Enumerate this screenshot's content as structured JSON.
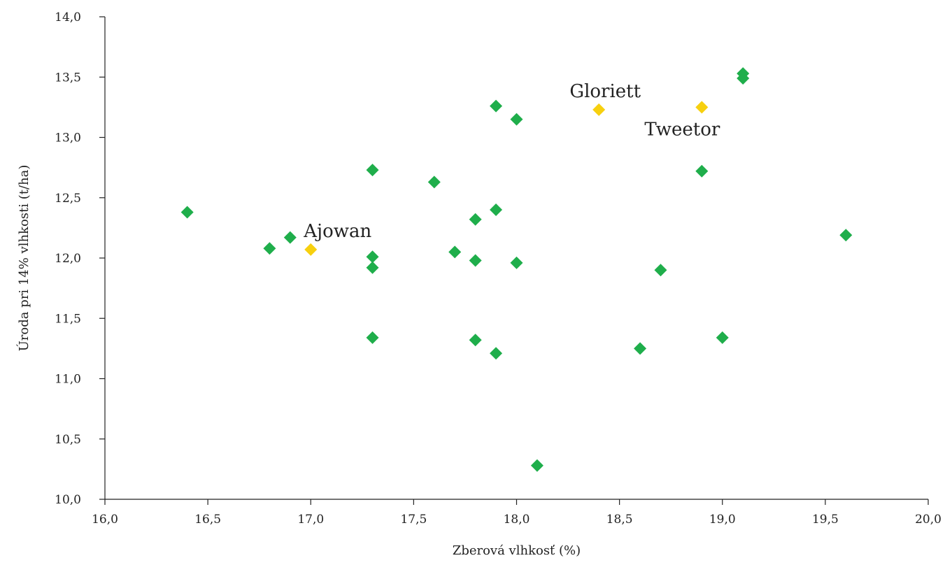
{
  "chart_data": {
    "type": "scatter",
    "title": "",
    "xlabel": "Zberová vlhkosť (%)",
    "ylabel": "Úroda pri 14% vlhkosti (t/ha)",
    "xlim": [
      16.0,
      20.0
    ],
    "ylim": [
      10.0,
      14.0
    ],
    "x_ticks": [
      16.0,
      16.5,
      17.0,
      17.5,
      18.0,
      18.5,
      19.0,
      19.5,
      20.0
    ],
    "y_ticks": [
      10.0,
      10.5,
      11.0,
      11.5,
      12.0,
      12.5,
      13.0,
      13.5,
      14.0
    ],
    "x_tick_labels": [
      "16,0",
      "16,5",
      "17,0",
      "17,5",
      "18,0",
      "18,5",
      "19,0",
      "19,5",
      "20,0"
    ],
    "y_tick_labels": [
      "10,0",
      "10,5",
      "11,0",
      "11,5",
      "12,0",
      "12,5",
      "13,0",
      "13,5",
      "14,0"
    ],
    "grid": false,
    "colors": {
      "default": "#1fae4b",
      "highlight": "#f7d00f"
    },
    "points": [
      {
        "x": 16.4,
        "y": 12.38
      },
      {
        "x": 16.8,
        "y": 12.08
      },
      {
        "x": 16.9,
        "y": 12.17
      },
      {
        "x": 17.3,
        "y": 12.73
      },
      {
        "x": 17.3,
        "y": 12.01
      },
      {
        "x": 17.3,
        "y": 11.92
      },
      {
        "x": 17.3,
        "y": 11.34
      },
      {
        "x": 17.6,
        "y": 12.63
      },
      {
        "x": 17.7,
        "y": 12.05
      },
      {
        "x": 17.8,
        "y": 12.32
      },
      {
        "x": 17.8,
        "y": 11.98
      },
      {
        "x": 17.8,
        "y": 11.32
      },
      {
        "x": 17.9,
        "y": 13.26
      },
      {
        "x": 17.9,
        "y": 12.4
      },
      {
        "x": 17.9,
        "y": 11.21
      },
      {
        "x": 18.0,
        "y": 13.15
      },
      {
        "x": 18.0,
        "y": 11.96
      },
      {
        "x": 18.1,
        "y": 10.28
      },
      {
        "x": 18.6,
        "y": 11.25
      },
      {
        "x": 18.7,
        "y": 11.9
      },
      {
        "x": 18.9,
        "y": 12.72
      },
      {
        "x": 19.0,
        "y": 11.34
      },
      {
        "x": 19.1,
        "y": 13.53
      },
      {
        "x": 19.1,
        "y": 13.49
      },
      {
        "x": 19.6,
        "y": 12.19
      }
    ],
    "highlighted": [
      {
        "label": "Ajowan",
        "x": 17.0,
        "y": 12.07,
        "label_position": "above-right"
      },
      {
        "label": "Gloriett",
        "x": 18.4,
        "y": 13.23,
        "label_position": "above"
      },
      {
        "label": "Tweetor",
        "x": 18.9,
        "y": 13.25,
        "label_position": "below"
      }
    ]
  }
}
